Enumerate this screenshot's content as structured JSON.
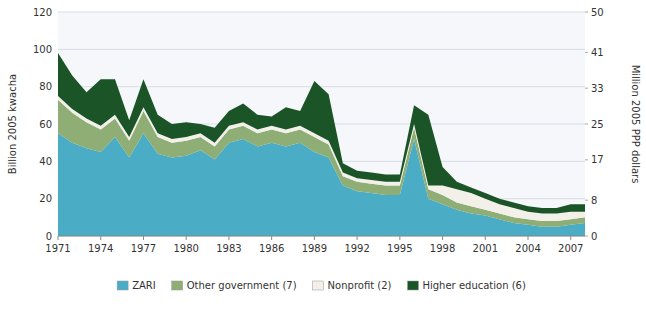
{
  "chart_data": {
    "type": "area",
    "stacked": true,
    "x": [
      1971,
      1972,
      1973,
      1974,
      1975,
      1976,
      1977,
      1978,
      1979,
      1980,
      1981,
      1982,
      1983,
      1984,
      1985,
      1986,
      1987,
      1988,
      1989,
      1990,
      1991,
      1992,
      1993,
      1994,
      1995,
      1996,
      1997,
      1998,
      1999,
      2000,
      2001,
      2002,
      2003,
      2004,
      2005,
      2006,
      2007,
      2008
    ],
    "xlim": [
      1971,
      2008
    ],
    "xticks": [
      1971,
      1974,
      1977,
      1980,
      1983,
      1986,
      1989,
      1992,
      1995,
      1998,
      2001,
      2004,
      2007
    ],
    "ylim": [
      0,
      120
    ],
    "yticks": [
      0,
      20,
      40,
      60,
      80,
      100,
      120
    ],
    "y2lim": [
      0,
      50
    ],
    "y2ticks": [
      0,
      8,
      17,
      25,
      33,
      41,
      50
    ],
    "ylabel": "Billion 2005 kwacha",
    "y2label": "Million 2005 PPP dollars",
    "grid": true,
    "legend": "bottom",
    "series": [
      {
        "name": "ZARI",
        "color": "#4bacc6",
        "values": [
          55,
          50,
          47,
          45,
          53,
          42,
          55,
          44,
          42,
          43,
          46,
          41,
          50,
          52,
          48,
          50,
          48,
          50,
          45,
          42,
          27,
          24,
          23,
          22,
          22,
          52,
          20,
          17,
          14,
          12,
          11,
          9,
          7,
          6,
          5,
          5,
          6,
          7
        ]
      },
      {
        "name": "Other government (7)",
        "color": "#8fae76",
        "values": [
          18,
          16,
          14,
          12,
          10,
          9,
          12,
          9,
          8,
          8,
          7,
          7,
          7,
          7,
          7,
          7,
          7,
          7,
          8,
          7,
          5,
          5,
          5,
          5,
          5,
          6,
          5,
          5,
          4,
          4,
          3,
          3,
          3,
          3,
          3,
          3,
          3,
          3
        ]
      },
      {
        "name": "Nonprofit (2)",
        "color": "#f2f0e8",
        "values": [
          2,
          2,
          2,
          2,
          2,
          2,
          2,
          2,
          2,
          2,
          2,
          2,
          2,
          2,
          2,
          2,
          2,
          2,
          2,
          2,
          2,
          2,
          2,
          2,
          2,
          2,
          2,
          5,
          7,
          7,
          6,
          5,
          5,
          4,
          4,
          4,
          4,
          3
        ]
      },
      {
        "name": "Higher education (6)",
        "color": "#1a5427",
        "values": [
          23,
          18,
          14,
          25,
          19,
          9,
          15,
          10,
          8,
          8,
          5,
          8,
          8,
          10,
          8,
          5,
          12,
          8,
          28,
          25,
          5,
          4,
          4,
          4,
          4,
          10,
          38,
          10,
          4,
          3,
          3,
          3,
          3,
          3,
          3,
          3,
          4,
          4
        ]
      }
    ]
  }
}
